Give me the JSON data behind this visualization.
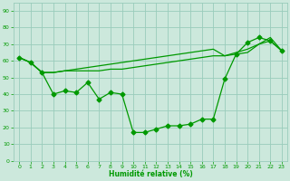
{
  "xlabel": "Humidité relative (%)",
  "bg_color": "#cce8dc",
  "grid_color": "#99ccbb",
  "line_color": "#009900",
  "xlim": [
    -0.5,
    23.5
  ],
  "ylim": [
    0,
    95
  ],
  "yticks": [
    0,
    10,
    20,
    30,
    40,
    50,
    60,
    70,
    80,
    90
  ],
  "xticks": [
    0,
    1,
    2,
    3,
    4,
    5,
    6,
    7,
    8,
    9,
    10,
    11,
    12,
    13,
    14,
    15,
    16,
    17,
    18,
    19,
    20,
    21,
    22,
    23
  ],
  "line1_x": [
    0,
    1,
    2,
    3,
    4,
    5,
    6,
    7,
    8,
    9,
    10,
    11,
    12,
    13,
    14,
    15,
    16,
    17,
    18,
    19,
    20,
    21,
    22,
    23
  ],
  "line1_y": [
    62,
    59,
    53,
    40,
    42,
    41,
    47,
    37,
    41,
    40,
    17,
    17,
    19,
    21,
    21,
    22,
    25,
    25,
    49,
    64,
    71,
    74,
    72,
    66
  ],
  "line2_x": [
    0,
    1,
    2,
    3,
    4,
    5,
    6,
    7,
    8,
    9,
    10,
    11,
    12,
    13,
    14,
    15,
    16,
    17,
    18,
    19,
    20,
    21,
    22,
    23
  ],
  "line2_y": [
    62,
    59,
    53,
    53,
    54,
    54,
    54,
    54,
    55,
    55,
    56,
    57,
    58,
    59,
    60,
    61,
    62,
    63,
    63,
    64,
    65,
    70,
    72,
    66
  ],
  "line3_x": [
    0,
    1,
    2,
    3,
    4,
    5,
    6,
    7,
    8,
    9,
    10,
    11,
    12,
    13,
    14,
    15,
    16,
    17,
    18,
    19,
    20,
    21,
    22,
    23
  ],
  "line3_y": [
    62,
    59,
    53,
    53,
    54,
    55,
    56,
    57,
    58,
    59,
    60,
    61,
    62,
    63,
    64,
    65,
    66,
    67,
    63,
    65,
    67,
    70,
    74,
    66
  ]
}
